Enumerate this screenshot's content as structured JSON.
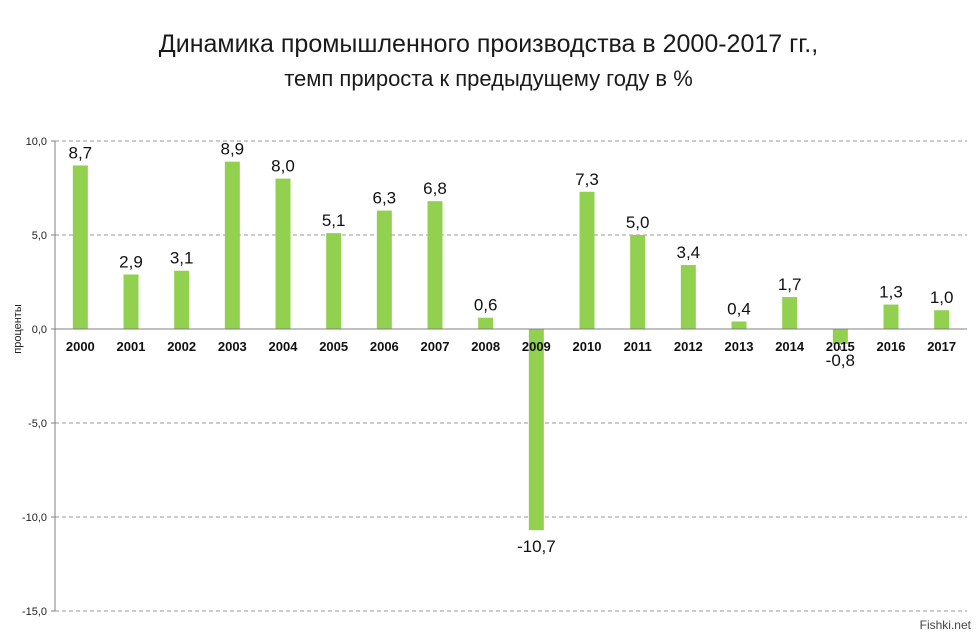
{
  "chart_data": {
    "type": "bar",
    "title": "Динамика промышленного производства в 2000-2017 гг.,",
    "subtitle": "темп прироста к предыдущему году в %",
    "ylabel": "проценты",
    "xlabel": "",
    "ylim": [
      -15,
      10
    ],
    "yticks": [
      "10,0",
      "5,0",
      "0,0",
      "-5,0",
      "-10,0",
      "-15,0"
    ],
    "ytick_values": [
      10,
      5,
      0,
      -5,
      -10,
      -15
    ],
    "grid": "dashed horizontal",
    "categories": [
      "2000",
      "2001",
      "2002",
      "2003",
      "2004",
      "2005",
      "2006",
      "2007",
      "2008",
      "2009",
      "2010",
      "2011",
      "2012",
      "2013",
      "2014",
      "2015",
      "2016",
      "2017"
    ],
    "values": [
      8.7,
      2.9,
      3.1,
      8.9,
      8.0,
      5.1,
      6.3,
      6.8,
      0.6,
      -10.7,
      7.3,
      5.0,
      3.4,
      0.4,
      1.7,
      -0.8,
      1.3,
      1.0
    ],
    "value_labels": [
      "8,7",
      "2,9",
      "3,1",
      "8,9",
      "8,0",
      "5,1",
      "6,3",
      "6,8",
      "0,6",
      "-10,7",
      "7,3",
      "5,0",
      "3,4",
      "0,4",
      "1,7",
      "-0,8",
      "1,3",
      "1,0"
    ],
    "bar_color": "#92d050"
  },
  "watermark": "Fishki.net"
}
